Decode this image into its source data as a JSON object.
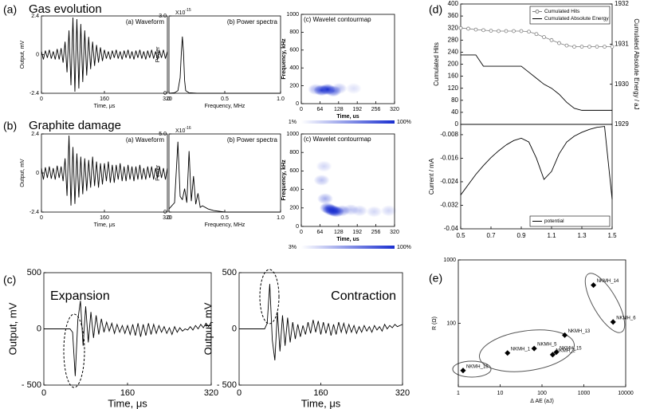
{
  "panel_labels": [
    "(a)",
    "(b)",
    "(c)",
    "(d)",
    "(e)"
  ],
  "section_titles": [
    "Gas evolution",
    "Graphite damage"
  ],
  "chart_data": [
    {
      "type": "line",
      "title": "(a) Waveform",
      "xlabel": "Time, μs",
      "ylabel": "Output, mV",
      "xlim": [
        0,
        320
      ],
      "xticks": [
        0,
        160,
        320
      ],
      "ylim": [
        -2.4,
        2.4
      ],
      "yticks": [
        -2.4,
        0,
        2.4
      ],
      "x": [
        0,
        5,
        10,
        15,
        20,
        25,
        30,
        35,
        40,
        45,
        50,
        55,
        60,
        65,
        70,
        75,
        80,
        85,
        90,
        95,
        100,
        105,
        110,
        115,
        120,
        125,
        130,
        135,
        140,
        145,
        150,
        155,
        160,
        165,
        170,
        175,
        180,
        185,
        190,
        195,
        200,
        205,
        210,
        215,
        220,
        225,
        230,
        235,
        240,
        245,
        250,
        255,
        260,
        265,
        270,
        275,
        280,
        285,
        290,
        295,
        300,
        305,
        310,
        315,
        320
      ],
      "series": [
        {
          "color": "#000000",
          "values": [
            0.2,
            -0.3,
            0.25,
            -0.2,
            0.3,
            -0.25,
            0.2,
            -0.3,
            0.35,
            -0.3,
            0.4,
            -0.5,
            0.8,
            -1.1,
            1.5,
            -1.9,
            2.3,
            -2.3,
            2.2,
            -2.1,
            1.9,
            -1.7,
            1.5,
            -1.3,
            1.1,
            -0.9,
            0.8,
            -0.7,
            0.6,
            -0.5,
            0.45,
            -0.4,
            0.3,
            -0.25,
            0.2,
            -0.3,
            0.25,
            -0.2,
            0.3,
            -0.25,
            0.2,
            -0.3,
            0.25,
            -0.2,
            0.3,
            -0.25,
            0.2,
            -0.3,
            0.25,
            -0.2,
            0.3,
            -0.25,
            0.2,
            -0.3,
            0.25,
            -0.2,
            0.3,
            -0.25,
            0.2,
            -0.3,
            0.25,
            -0.2,
            0.3,
            -0.25,
            0.2
          ]
        }
      ]
    },
    {
      "type": "line",
      "title": "(b) Power spectra",
      "xlabel": "Frequency, MHz",
      "ylabel": "Power",
      "scale_label": "X10",
      "scale_exponent": "-15",
      "xlim": [
        0,
        1
      ],
      "xticks": [
        0,
        0.5,
        {
          "value": 1,
          "label": "1.0"
        }
      ],
      "ylim": [
        0,
        3
      ],
      "yticks": [
        0,
        {
          "value": 3,
          "label": "3.0"
        }
      ],
      "x": [
        0,
        0.05,
        0.08,
        0.1,
        0.11,
        0.12,
        0.13,
        0.14,
        0.15,
        0.18,
        0.25,
        0.5,
        0.75,
        1
      ],
      "series": [
        {
          "color": "#000000",
          "values": [
            0,
            0.02,
            0.1,
            0.6,
            1.5,
            2.2,
            1.6,
            0.5,
            0.1,
            0.02,
            0,
            0,
            0,
            0
          ]
        }
      ]
    },
    {
      "type": "contour",
      "title": "(c) Wavelet contourmap",
      "xlabel": "Time, us",
      "ylabel": "Frequency, kHz",
      "xlim": [
        0,
        320
      ],
      "xticks": [
        0,
        64,
        128,
        192,
        256,
        320
      ],
      "ylim": [
        0,
        1000
      ],
      "yticks": [
        0,
        200,
        400,
        600,
        800,
        1000
      ],
      "color": "#1a2fd0",
      "colorbar_labels": [
        "1%",
        "100%"
      ],
      "x": [
        50,
        70,
        90,
        110,
        130,
        180
      ],
      "y": [
        160,
        150,
        160,
        140,
        170,
        170
      ],
      "values": [
        40,
        90,
        100,
        70,
        30,
        15
      ]
    },
    {
      "type": "line",
      "title": "(a) Waveform",
      "xlabel": "Time, μs",
      "ylabel": "Output, mV",
      "xlim": [
        0,
        320
      ],
      "xticks": [
        0,
        160,
        320
      ],
      "ylim": [
        -2.4,
        2.4
      ],
      "yticks": [
        -2.4,
        0,
        2.4
      ],
      "x": [
        0,
        5,
        10,
        15,
        20,
        25,
        30,
        35,
        40,
        45,
        50,
        55,
        60,
        65,
        70,
        75,
        80,
        85,
        90,
        95,
        100,
        105,
        110,
        115,
        120,
        125,
        130,
        135,
        140,
        145,
        150,
        155,
        160,
        165,
        170,
        175,
        180,
        185,
        190,
        195,
        200,
        205,
        210,
        215,
        220,
        225,
        230,
        235,
        240,
        245,
        250,
        255,
        260,
        265,
        270,
        275,
        280,
        285,
        290,
        295,
        300,
        305,
        310,
        315,
        320
      ],
      "series": [
        {
          "color": "#000000",
          "values": [
            0.3,
            -0.4,
            0.35,
            -0.3,
            0.4,
            -0.35,
            0.3,
            -0.4,
            0.45,
            -0.3,
            0.4,
            -0.5,
            0.9,
            -1.4,
            2.3,
            -2.0,
            1.6,
            -1.9,
            1.2,
            -1.5,
            1.0,
            -1.3,
            0.9,
            -1.1,
            0.8,
            -0.9,
            1.0,
            -0.8,
            0.7,
            -0.9,
            0.6,
            -0.7,
            0.6,
            -0.5,
            0.7,
            -0.6,
            0.5,
            -0.6,
            0.5,
            -0.4,
            0.6,
            -0.5,
            0.4,
            -0.5,
            0.5,
            -0.4,
            0.4,
            -0.5,
            0.4,
            -0.4,
            0.5,
            -0.4,
            0.3,
            -0.4,
            0.4,
            -0.3,
            0.4,
            -0.4,
            0.3,
            -0.3,
            0.4,
            -0.3,
            0.3,
            -0.4,
            0.3
          ]
        }
      ]
    },
    {
      "type": "line",
      "title": "(b) Power spectra",
      "xlabel": "Frequency, MHz",
      "ylabel": "Power",
      "scale_label": "X10",
      "scale_exponent": "-16",
      "xlim": [
        0,
        1
      ],
      "xticks": [
        0,
        0.5,
        {
          "value": 1,
          "label": "1.0"
        }
      ],
      "ylim": [
        0,
        5
      ],
      "yticks": [
        0,
        {
          "value": 5,
          "label": "5.0"
        }
      ],
      "x": [
        0,
        0.05,
        0.08,
        0.1,
        0.12,
        0.14,
        0.16,
        0.18,
        0.2,
        0.22,
        0.24,
        0.26,
        0.28,
        0.3,
        0.35,
        0.4,
        0.5,
        0.75,
        1
      ],
      "series": [
        {
          "color": "#000000",
          "values": [
            0.2,
            0.6,
            4.5,
            1.0,
            0.8,
            1.5,
            0.6,
            3.9,
            0.7,
            2.3,
            0.5,
            1.2,
            0.3,
            0.4,
            0.2,
            0.1,
            0,
            0,
            0
          ]
        }
      ]
    },
    {
      "type": "contour",
      "title": "(c) Wavelet contourmap",
      "xlabel": "Time, us",
      "ylabel": "Frequency, kHz",
      "xlim": [
        0,
        320
      ],
      "xticks": [
        0,
        64,
        128,
        192,
        256,
        320
      ],
      "ylim": [
        0,
        1000
      ],
      "yticks": [
        0,
        200,
        400,
        600,
        800,
        1000
      ],
      "color": "#1a2fd0",
      "colorbar_labels": [
        "3%",
        "100%"
      ],
      "x": [
        70,
        78,
        82,
        90,
        100,
        110,
        120,
        140,
        170,
        200,
        250,
        300
      ],
      "y": [
        500,
        650,
        300,
        200,
        180,
        170,
        160,
        170,
        180,
        170,
        160,
        170
      ],
      "values": [
        30,
        20,
        40,
        70,
        90,
        100,
        80,
        50,
        30,
        25,
        20,
        20
      ]
    },
    {
      "type": "line",
      "title": "Expansion",
      "xlabel": "Time, μs",
      "ylabel": "Output, mV",
      "xlim": [
        0,
        320
      ],
      "xticks": [
        0,
        160,
        320
      ],
      "ylim": [
        -500,
        500
      ],
      "yticks": [
        {
          "value": -500,
          "label": "- 500"
        },
        0,
        500
      ],
      "x": [
        0,
        5,
        10,
        15,
        20,
        25,
        30,
        35,
        40,
        45,
        50,
        55,
        60,
        65,
        70,
        75,
        80,
        85,
        90,
        95,
        100,
        105,
        110,
        115,
        120,
        125,
        130,
        135,
        140,
        145,
        150,
        155,
        160,
        165,
        170,
        175,
        180,
        185,
        190,
        195,
        200,
        205,
        210,
        215,
        220,
        225,
        230,
        235,
        240,
        245,
        250,
        255,
        260,
        265,
        270,
        275,
        280,
        285,
        290,
        295,
        300,
        305,
        310,
        315,
        320
      ],
      "series": [
        {
          "color": "#000000",
          "values": [
            0,
            0,
            0,
            0,
            0,
            0,
            0,
            0,
            0,
            0,
            0,
            -30,
            -420,
            80,
            250,
            -150,
            200,
            -120,
            150,
            -80,
            120,
            -50,
            90,
            -30,
            60,
            -20,
            50,
            -40,
            40,
            -30,
            30,
            -40,
            30,
            -50,
            40,
            -60,
            50,
            -70,
            40,
            -60,
            50,
            -50,
            40,
            -40,
            30,
            -30,
            20,
            -40,
            10,
            -50,
            20,
            -30,
            10,
            -20,
            0,
            -10,
            20,
            -10,
            30,
            0,
            40,
            10,
            50,
            20,
            60
          ]
        }
      ]
    },
    {
      "type": "line",
      "title": "Contraction",
      "xlabel": "Time, μs",
      "ylabel": "Output, mV",
      "xlim": [
        0,
        320
      ],
      "xticks": [
        0,
        160,
        320
      ],
      "ylim": [
        -500,
        500
      ],
      "yticks": [
        {
          "value": -500,
          "label": "- 500"
        },
        0,
        500
      ],
      "x": [
        0,
        5,
        10,
        15,
        20,
        25,
        30,
        35,
        40,
        45,
        50,
        55,
        60,
        65,
        70,
        75,
        80,
        85,
        90,
        95,
        100,
        105,
        110,
        115,
        120,
        125,
        130,
        135,
        140,
        145,
        150,
        155,
        160,
        165,
        170,
        175,
        180,
        185,
        190,
        195,
        200,
        205,
        210,
        215,
        220,
        225,
        230,
        235,
        240,
        245,
        250,
        255,
        260,
        265,
        270,
        275,
        280,
        285,
        290,
        295,
        300,
        305,
        310,
        315,
        320
      ],
      "series": [
        {
          "color": "#000000",
          "values": [
            0,
            0,
            0,
            0,
            0,
            0,
            0,
            0,
            0,
            0,
            0,
            50,
            400,
            -100,
            -280,
            150,
            -200,
            120,
            -150,
            100,
            -120,
            60,
            -90,
            40,
            -70,
            30,
            -50,
            60,
            -40,
            80,
            -30,
            70,
            -50,
            60,
            -40,
            50,
            -60,
            40,
            -50,
            60,
            -30,
            50,
            -40,
            40,
            -30,
            30,
            -40,
            20,
            -30,
            30,
            -20,
            20,
            -30,
            30,
            -10,
            20,
            -20,
            40,
            0,
            30,
            10,
            40,
            20,
            30,
            40
          ]
        }
      ]
    },
    {
      "type": "line",
      "ylabel": "Cumulated Hits",
      "y2label": "Cumulated Absolute Energy / aJ",
      "legend": "upper right",
      "xlim": [
        0.5,
        1.5
      ],
      "ylim": [
        0,
        400
      ],
      "yticks": [
        0,
        40,
        80,
        120,
        160,
        200,
        240,
        280,
        320,
        360,
        400
      ],
      "y2lim": [
        1929,
        1932
      ],
      "y2ticks": [
        1929,
        1930,
        1931,
        1932
      ],
      "x": [
        0.5,
        0.55,
        0.6,
        0.65,
        0.7,
        0.75,
        0.8,
        0.85,
        0.9,
        0.95,
        1,
        1.05,
        1.1,
        1.15,
        1.2,
        1.25,
        1.3,
        1.35,
        1.4,
        1.45,
        1.5
      ],
      "series": [
        {
          "name": "Cumulated Hits",
          "color": "#808080",
          "marker": "circle",
          "values": [
            320,
            318,
            315,
            313,
            311,
            310,
            310,
            310,
            310,
            308,
            300,
            290,
            280,
            270,
            262,
            258,
            258,
            258,
            258,
            258,
            258
          ]
        },
        {
          "name": "Cumulated Absolute Energy",
          "color": "#000000",
          "axis": "y2",
          "values": [
            1930.73,
            1930.73,
            1930.73,
            1930.45,
            1930.45,
            1930.45,
            1930.45,
            1930.45,
            1930.45,
            1930.3,
            1930.15,
            1930.0,
            1929.9,
            1929.75,
            1929.55,
            1929.4,
            1929.35,
            1929.35,
            1929.35,
            1929.35,
            1929.35
          ]
        }
      ]
    },
    {
      "type": "line",
      "ylabel": "Current / mA",
      "legend": "lower right",
      "xlim": [
        0.5,
        1.5
      ],
      "xticks": [
        0.5,
        0.7,
        0.9,
        1.1,
        1.3,
        1.5
      ],
      "ylim": [
        -0.04,
        -0.0045
      ],
      "yticks": [
        -0.04,
        -0.032,
        -0.024,
        -0.016,
        -0.008
      ],
      "x": [
        0.5,
        0.55,
        0.6,
        0.65,
        0.7,
        0.75,
        0.8,
        0.85,
        0.9,
        0.95,
        1,
        1.05,
        1.1,
        1.15,
        1.2,
        1.25,
        1.3,
        1.35,
        1.4,
        1.45,
        1.5
      ],
      "series": [
        {
          "name": "potential",
          "color": "#000000",
          "values": [
            -0.0285,
            -0.025,
            -0.0215,
            -0.0185,
            -0.0158,
            -0.0135,
            -0.0115,
            -0.01,
            -0.0092,
            -0.0105,
            -0.016,
            -0.0232,
            -0.0205,
            -0.0145,
            -0.0105,
            -0.0085,
            -0.0072,
            -0.0062,
            -0.0055,
            -0.0052,
            -0.03
          ]
        }
      ]
    },
    {
      "type": "scatter",
      "xlabel": "Δ AE (aJ)",
      "ylabel": "R (Ω)",
      "xscale": "log",
      "yscale": "log",
      "xlim": [
        1,
        10000
      ],
      "xticks": [
        1,
        10,
        100,
        1000,
        10000
      ],
      "ylim": [
        10,
        1000
      ],
      "yticks": [
        100,
        1000
      ],
      "color": "#000000",
      "labels": [
        "NKMH_14",
        "NKMH_6",
        "NKMH_13",
        "NKMH_5",
        "NKMH_1",
        "NKMH_15",
        "NKMH_2",
        "NKMH_16"
      ],
      "x": [
        1700,
        5000,
        350,
        65,
        15,
        220,
        180,
        1.3
      ],
      "values": [
        400,
        105,
        65,
        40,
        34,
        35,
        32,
        18
      ]
    }
  ]
}
